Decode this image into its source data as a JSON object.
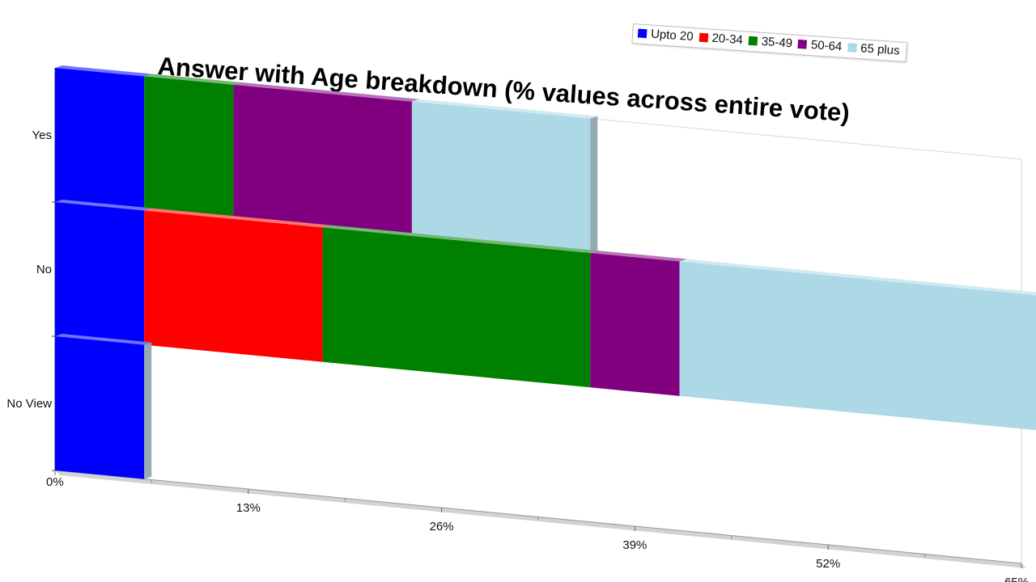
{
  "chart_data": {
    "type": "bar",
    "orientation": "horizontal",
    "stacked": true,
    "style": "3d-perspective",
    "title": "Answer with Age breakdown (% values across entire vote)",
    "categories": [
      "Yes",
      "No",
      "No View"
    ],
    "series": [
      {
        "name": "Upto 20",
        "color": "#0000ff",
        "values": [
          6,
          6,
          6
        ]
      },
      {
        "name": "20-34",
        "color": "#ff0000",
        "values": [
          0,
          12,
          0
        ]
      },
      {
        "name": "35-49",
        "color": "#008000",
        "values": [
          6,
          18,
          0
        ]
      },
      {
        "name": "50-64",
        "color": "#800080",
        "values": [
          12,
          6,
          0
        ]
      },
      {
        "name": "65 plus",
        "color": "#add8e6",
        "values": [
          12,
          24,
          0
        ]
      }
    ],
    "x_ticks": [
      "0%",
      "13%",
      "26%",
      "39%",
      "52%",
      "65%"
    ],
    "xlim": [
      0,
      65
    ],
    "legend_position": "top-right",
    "grid": false
  }
}
